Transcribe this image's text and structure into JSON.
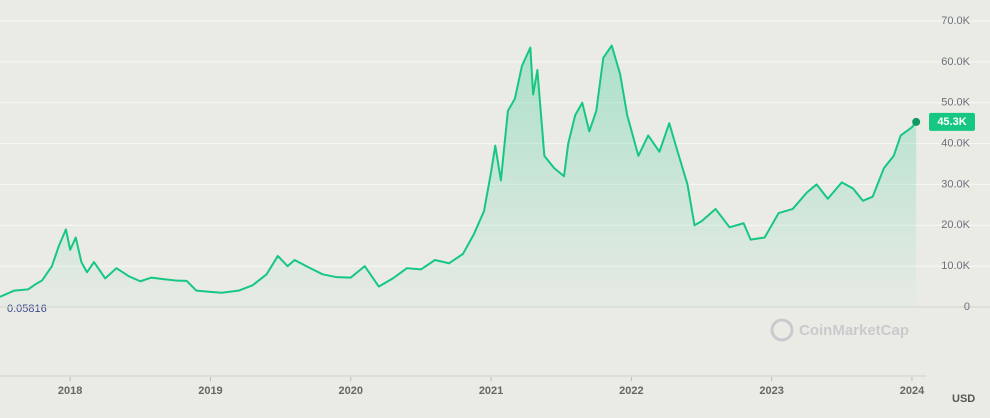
{
  "chart_data": {
    "type": "area",
    "x": [
      2017.5,
      2017.6,
      2017.7,
      2017.75,
      2017.8,
      2017.87,
      2017.92,
      2017.97,
      2018.0,
      2018.04,
      2018.08,
      2018.12,
      2018.17,
      2018.25,
      2018.33,
      2018.42,
      2018.5,
      2018.58,
      2018.67,
      2018.75,
      2018.83,
      2018.9,
      2019.0,
      2019.08,
      2019.2,
      2019.3,
      2019.4,
      2019.48,
      2019.55,
      2019.6,
      2019.7,
      2019.8,
      2019.9,
      2020.0,
      2020.1,
      2020.2,
      2020.3,
      2020.4,
      2020.5,
      2020.6,
      2020.7,
      2020.8,
      2020.88,
      2020.95,
      2021.0,
      2021.03,
      2021.07,
      2021.12,
      2021.17,
      2021.22,
      2021.28,
      2021.3,
      2021.33,
      2021.38,
      2021.45,
      2021.52,
      2021.55,
      2021.6,
      2021.65,
      2021.7,
      2021.75,
      2021.8,
      2021.86,
      2021.92,
      2021.97,
      2022.05,
      2022.12,
      2022.2,
      2022.27,
      2022.33,
      2022.4,
      2022.45,
      2022.5,
      2022.6,
      2022.7,
      2022.8,
      2022.85,
      2022.95,
      2023.05,
      2023.15,
      2023.25,
      2023.32,
      2023.4,
      2023.5,
      2023.58,
      2023.65,
      2023.72,
      2023.8,
      2023.87,
      2023.92,
      2024.0,
      2024.03
    ],
    "values": [
      2500,
      4000,
      4300,
      5500,
      6500,
      10000,
      15000,
      19000,
      14000,
      17000,
      11000,
      8500,
      11000,
      7000,
      9500,
      7500,
      6300,
      7200,
      6800,
      6500,
      6400,
      4000,
      3700,
      3500,
      4000,
      5300,
      8000,
      12500,
      10000,
      11500,
      9700,
      8000,
      7300,
      7200,
      10000,
      5000,
      7000,
      9500,
      9200,
      11500,
      10700,
      13000,
      18000,
      23500,
      33000,
      39500,
      31000,
      48000,
      51000,
      59000,
      63500,
      52000,
      58000,
      37000,
      34000,
      32000,
      40000,
      47000,
      50000,
      43000,
      48000,
      61000,
      64000,
      57000,
      47000,
      37000,
      42000,
      38000,
      45000,
      38000,
      30000,
      20000,
      21000,
      24000,
      19500,
      20500,
      16500,
      17000,
      23000,
      24000,
      28000,
      30000,
      26500,
      30500,
      29000,
      26000,
      27000,
      34000,
      37000,
      42000,
      44000,
      45300
    ],
    "color": "#16c784",
    "xlim": [
      2017.5,
      2024.1
    ],
    "xticks": [
      2018,
      2019,
      2020,
      2021,
      2022,
      2023,
      2024
    ],
    "ylim": [
      0,
      70000
    ],
    "yticks": [
      0,
      {
        "value": 10000,
        "label": "10.0K"
      },
      {
        "value": 20000,
        "label": "20.0K"
      },
      {
        "value": 30000,
        "label": "30.0K"
      },
      {
        "value": 40000,
        "label": "40.0K"
      },
      {
        "value": 50000,
        "label": "50.0K"
      },
      {
        "value": 60000,
        "label": "60.0K"
      },
      {
        "value": 70000,
        "label": "70.0K"
      }
    ],
    "grid": true,
    "last_value_label": "45.3K",
    "low_label": "0.05816",
    "currency_label": "USD",
    "watermark": "CoinMarketCap"
  }
}
